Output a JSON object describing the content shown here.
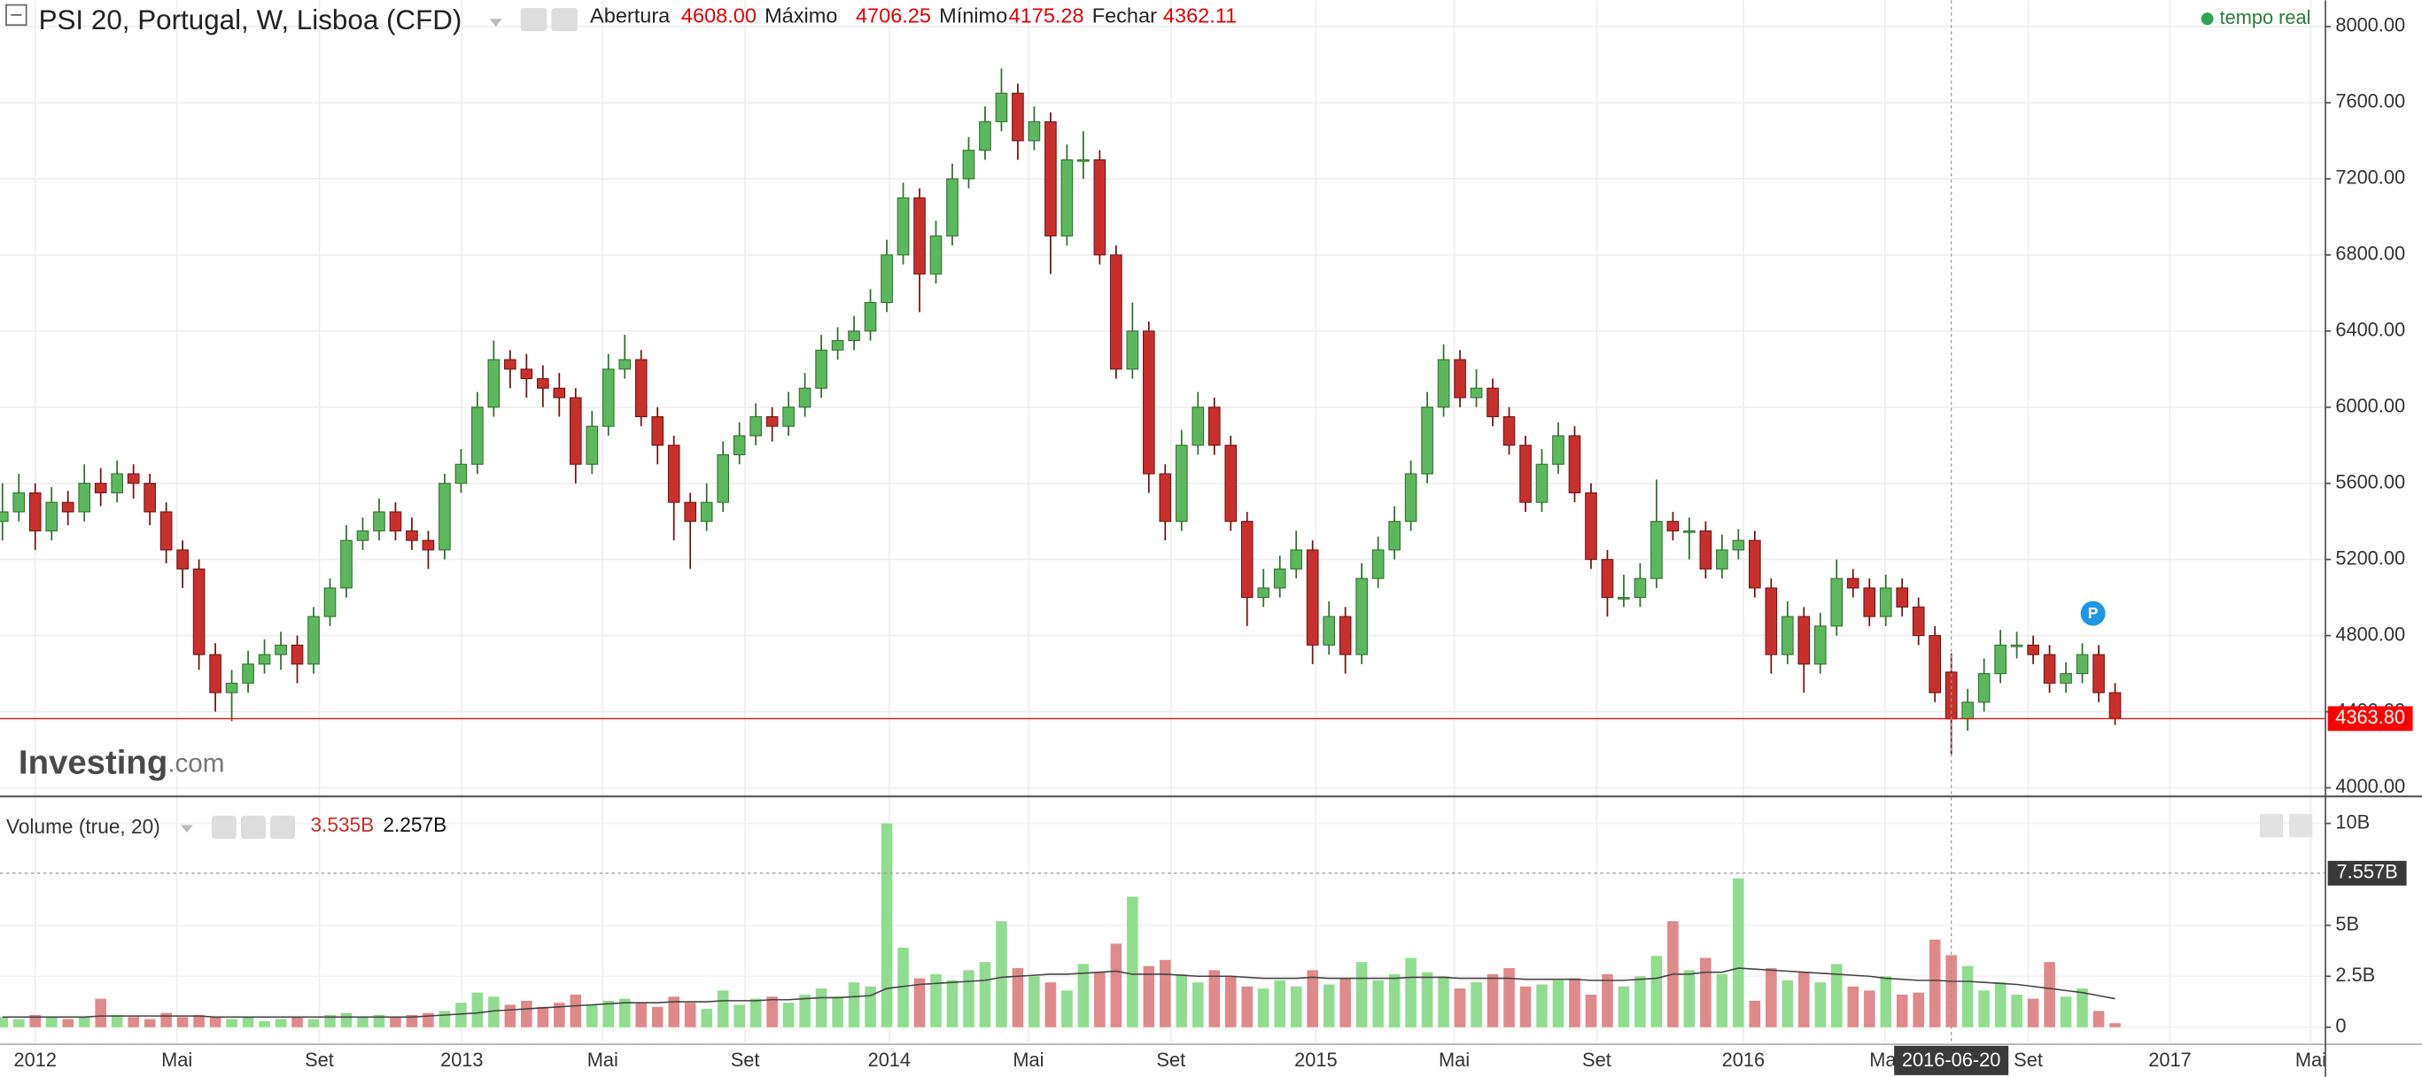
{
  "chart_data": {
    "type": "candlestick",
    "title": "PSI 20, Portugal, W, Lisboa (CFD)",
    "header_fields": [
      {
        "name": "Abertura",
        "value": 4608,
        "label": "4608.00"
      },
      {
        "name": "Máximo",
        "value": 4706.25,
        "label": "4706.25"
      },
      {
        "name": "Mínimo",
        "value": 4175.28,
        "label": "4175.28"
      },
      {
        "name": "Fechar",
        "value": 4362.11,
        "label": "4362.11"
      }
    ],
    "status": "tempo real",
    "watermark": {
      "brand": "Investing",
      "suffix": ".com"
    },
    "event_marker": "P",
    "up_color": "#5cb85c",
    "down_color": "#c9302c",
    "x": [
      -4,
      -2,
      0,
      2,
      4,
      6,
      8,
      10,
      12,
      14,
      16,
      18,
      20,
      22,
      24,
      26,
      28,
      30,
      32,
      34,
      36,
      38,
      40,
      42,
      44,
      46,
      48,
      50,
      52,
      54,
      56,
      58,
      60,
      62,
      64,
      66,
      68,
      70,
      72,
      74,
      76,
      78,
      80,
      82,
      84,
      86,
      88,
      90,
      92,
      94,
      96,
      98,
      100,
      102,
      104,
      106,
      108,
      110,
      112,
      114,
      116,
      118,
      120,
      122,
      124,
      126,
      128,
      130,
      132,
      134,
      136,
      138,
      140,
      142,
      144,
      146,
      148,
      150,
      152,
      154,
      156,
      158,
      160,
      162,
      164,
      166,
      168,
      170,
      172,
      174,
      176,
      178,
      180,
      182,
      184,
      186,
      188,
      190,
      192,
      194,
      196,
      198,
      200,
      202,
      204,
      206,
      208,
      210,
      212,
      214,
      216,
      218,
      220,
      222,
      224,
      226,
      228,
      230,
      232,
      234,
      236,
      238,
      240,
      242,
      244,
      246,
      248,
      250,
      252,
      254
    ],
    "ohlc": [
      [
        5400,
        5600,
        5300,
        5450
      ],
      [
        5450,
        5650,
        5400,
        5550
      ],
      [
        5550,
        5600,
        5250,
        5350
      ],
      [
        5350,
        5580,
        5300,
        5500
      ],
      [
        5500,
        5560,
        5380,
        5450
      ],
      [
        5450,
        5700,
        5400,
        5600
      ],
      [
        5600,
        5680,
        5480,
        5550
      ],
      [
        5550,
        5720,
        5500,
        5650
      ],
      [
        5650,
        5700,
        5520,
        5600
      ],
      [
        5600,
        5650,
        5380,
        5450
      ],
      [
        5450,
        5500,
        5180,
        5250
      ],
      [
        5250,
        5300,
        5050,
        5150
      ],
      [
        5150,
        5200,
        4620,
        4700
      ],
      [
        4700,
        4760,
        4400,
        4500
      ],
      [
        4500,
        4620,
        4350,
        4550
      ],
      [
        4550,
        4720,
        4500,
        4650
      ],
      [
        4650,
        4780,
        4600,
        4700
      ],
      [
        4700,
        4820,
        4620,
        4750
      ],
      [
        4750,
        4800,
        4550,
        4650
      ],
      [
        4650,
        4950,
        4600,
        4900
      ],
      [
        4900,
        5100,
        4850,
        5050
      ],
      [
        5050,
        5380,
        5000,
        5300
      ],
      [
        5300,
        5420,
        5250,
        5350
      ],
      [
        5350,
        5520,
        5300,
        5450
      ],
      [
        5450,
        5500,
        5300,
        5350
      ],
      [
        5350,
        5420,
        5250,
        5300
      ],
      [
        5300,
        5350,
        5150,
        5250
      ],
      [
        5250,
        5650,
        5200,
        5600
      ],
      [
        5600,
        5780,
        5550,
        5700
      ],
      [
        5700,
        6080,
        5650,
        6000
      ],
      [
        6000,
        6350,
        5950,
        6250
      ],
      [
        6250,
        6300,
        6100,
        6200
      ],
      [
        6200,
        6280,
        6050,
        6150
      ],
      [
        6150,
        6220,
        6000,
        6100
      ],
      [
        6100,
        6180,
        5950,
        6050
      ],
      [
        6050,
        6100,
        5600,
        5700
      ],
      [
        5700,
        5980,
        5650,
        5900
      ],
      [
        5900,
        6280,
        5850,
        6200
      ],
      [
        6200,
        6380,
        6150,
        6250
      ],
      [
        6250,
        6300,
        5900,
        5950
      ],
      [
        5950,
        6000,
        5700,
        5800
      ],
      [
        5800,
        5850,
        5300,
        5500
      ],
      [
        5500,
        5550,
        5150,
        5400
      ],
      [
        5400,
        5600,
        5350,
        5500
      ],
      [
        5500,
        5820,
        5450,
        5750
      ],
      [
        5750,
        5920,
        5700,
        5850
      ],
      [
        5850,
        6020,
        5800,
        5950
      ],
      [
        5950,
        6000,
        5820,
        5900
      ],
      [
        5900,
        6080,
        5850,
        6000
      ],
      [
        6000,
        6180,
        5950,
        6100
      ],
      [
        6100,
        6380,
        6050,
        6300
      ],
      [
        6300,
        6420,
        6250,
        6350
      ],
      [
        6350,
        6480,
        6300,
        6400
      ],
      [
        6400,
        6620,
        6350,
        6550
      ],
      [
        6550,
        6880,
        6500,
        6800
      ],
      [
        6800,
        7180,
        6750,
        7100
      ],
      [
        7100,
        7150,
        6500,
        6700
      ],
      [
        6700,
        6980,
        6650,
        6900
      ],
      [
        6900,
        7280,
        6850,
        7200
      ],
      [
        7200,
        7420,
        7150,
        7350
      ],
      [
        7350,
        7580,
        7300,
        7500
      ],
      [
        7500,
        7780,
        7450,
        7650
      ],
      [
        7650,
        7700,
        7300,
        7400
      ],
      [
        7400,
        7580,
        7350,
        7500
      ],
      [
        7500,
        7550,
        6700,
        6900
      ],
      [
        6900,
        7380,
        6850,
        7300
      ],
      [
        7300,
        7450,
        7200,
        7300
      ],
      [
        7300,
        7350,
        6750,
        6800
      ],
      [
        6800,
        6850,
        6150,
        6200
      ],
      [
        6200,
        6550,
        6150,
        6400
      ],
      [
        6400,
        6450,
        5550,
        5650
      ],
      [
        5650,
        5700,
        5300,
        5400
      ],
      [
        5400,
        5880,
        5350,
        5800
      ],
      [
        5800,
        6080,
        5750,
        6000
      ],
      [
        6000,
        6050,
        5750,
        5800
      ],
      [
        5800,
        5850,
        5350,
        5400
      ],
      [
        5400,
        5450,
        4850,
        5000
      ],
      [
        5000,
        5150,
        4950,
        5050
      ],
      [
        5050,
        5220,
        5000,
        5150
      ],
      [
        5150,
        5350,
        5100,
        5250
      ],
      [
        5250,
        5300,
        4650,
        4750
      ],
      [
        4750,
        4980,
        4700,
        4900
      ],
      [
        4900,
        4950,
        4600,
        4700
      ],
      [
        4700,
        5180,
        4650,
        5100
      ],
      [
        5100,
        5320,
        5050,
        5250
      ],
      [
        5250,
        5480,
        5200,
        5400
      ],
      [
        5400,
        5720,
        5350,
        5650
      ],
      [
        5650,
        6080,
        5600,
        6000
      ],
      [
        6000,
        6330,
        5950,
        6250
      ],
      [
        6250,
        6300,
        6000,
        6050
      ],
      [
        6050,
        6200,
        6000,
        6100
      ],
      [
        6100,
        6150,
        5900,
        5950
      ],
      [
        5950,
        6000,
        5750,
        5800
      ],
      [
        5800,
        5850,
        5450,
        5500
      ],
      [
        5500,
        5780,
        5450,
        5700
      ],
      [
        5700,
        5920,
        5650,
        5850
      ],
      [
        5850,
        5900,
        5500,
        5550
      ],
      [
        5550,
        5600,
        5150,
        5200
      ],
      [
        5200,
        5250,
        4900,
        5000
      ],
      [
        5000,
        5120,
        4950,
        5000
      ],
      [
        5000,
        5180,
        4950,
        5100
      ],
      [
        5100,
        5620,
        5050,
        5400
      ],
      [
        5400,
        5450,
        5300,
        5350
      ],
      [
        5350,
        5420,
        5200,
        5350
      ],
      [
        5350,
        5400,
        5100,
        5150
      ],
      [
        5150,
        5330,
        5100,
        5250
      ],
      [
        5250,
        5360,
        5200,
        5300
      ],
      [
        5300,
        5350,
        5000,
        5050
      ],
      [
        5050,
        5100,
        4600,
        4700
      ],
      [
        4700,
        4980,
        4650,
        4900
      ],
      [
        4900,
        4950,
        4500,
        4650
      ],
      [
        4650,
        4920,
        4600,
        4850
      ],
      [
        4850,
        5200,
        4800,
        5100
      ],
      [
        5100,
        5150,
        5000,
        5050
      ],
      [
        5050,
        5100,
        4850,
        4900
      ],
      [
        4900,
        5120,
        4850,
        5050
      ],
      [
        5050,
        5100,
        4900,
        4950
      ],
      [
        4950,
        5000,
        4750,
        4800
      ],
      [
        4800,
        4850,
        4450,
        4500
      ],
      [
        4608,
        4706.25,
        4175.28,
        4362.11
      ],
      [
        4362.11,
        4520,
        4300,
        4450
      ],
      [
        4450,
        4680,
        4400,
        4600
      ],
      [
        4600,
        4830,
        4550,
        4750
      ],
      [
        4750,
        4820,
        4680,
        4750
      ],
      [
        4750,
        4800,
        4650,
        4700
      ],
      [
        4700,
        4750,
        4500,
        4550
      ],
      [
        4550,
        4660,
        4500,
        4600
      ],
      [
        4600,
        4760,
        4550,
        4700
      ],
      [
        4700,
        4750,
        4450,
        4500
      ],
      [
        4500,
        4550,
        4330,
        4363.8
      ]
    ],
    "xlim": [
      -4.3,
      279.6
    ],
    "xticks": [
      {
        "value": 0,
        "label": "2012"
      },
      {
        "value": 17.3,
        "label": "Mai"
      },
      {
        "value": 34.7,
        "label": "Set"
      },
      {
        "value": 52.1,
        "label": "2013"
      },
      {
        "value": 69.3,
        "label": "Mai"
      },
      {
        "value": 86.7,
        "label": "Set"
      },
      {
        "value": 104.3,
        "label": "2014"
      },
      {
        "value": 121.3,
        "label": "Mai"
      },
      {
        "value": 138.7,
        "label": "Set"
      },
      {
        "value": 156.4,
        "label": "2015"
      },
      {
        "value": 173.3,
        "label": "Mai"
      },
      {
        "value": 190.7,
        "label": "Set"
      },
      {
        "value": 208.6,
        "label": "2016"
      },
      {
        "value": 225.9,
        "label": "Mai"
      },
      {
        "value": 243.4,
        "label": "Set"
      },
      {
        "value": 260.7,
        "label": "2017"
      },
      {
        "value": 277.9,
        "label": "Mai"
      }
    ],
    "ylim": [
      3959,
      8138
    ],
    "yticks": [
      {
        "value": 4000,
        "label": "4000.00"
      },
      {
        "value": 4400,
        "label": "4400.00"
      },
      {
        "value": 4800,
        "label": "4800.00"
      },
      {
        "value": 5200,
        "label": "5200.00"
      },
      {
        "value": 5600,
        "label": "5600.00"
      },
      {
        "value": 6000,
        "label": "6000.00"
      },
      {
        "value": 6400,
        "label": "6400.00"
      },
      {
        "value": 6800,
        "label": "6800.00"
      },
      {
        "value": 7200,
        "label": "7200.00"
      },
      {
        "value": 7600,
        "label": "7600.00"
      },
      {
        "value": 8000,
        "label": "8000.00"
      }
    ],
    "grid": true,
    "last_price": {
      "value": 4363.8,
      "label": "4363.80",
      "color": "#ff0000"
    },
    "volume": {
      "title": "Volume (true, 20)",
      "legend": [
        {
          "value": 3.535,
          "label": "3.535B",
          "color": "#c9302c"
        },
        {
          "value": 2.257,
          "label": "2.257B",
          "color": "#111111"
        }
      ],
      "up_color": "#90dd90",
      "down_color": "#e0898b",
      "ma_color": "#444444",
      "values": [
        0.5,
        0.4,
        0.6,
        0.5,
        0.4,
        0.5,
        1.4,
        0.6,
        0.5,
        0.4,
        0.7,
        0.5,
        0.6,
        0.5,
        0.4,
        0.5,
        0.3,
        0.4,
        0.5,
        0.4,
        0.6,
        0.7,
        0.5,
        0.6,
        0.5,
        0.6,
        0.7,
        0.8,
        1.2,
        1.7,
        1.5,
        1.1,
        1.3,
        1.0,
        1.2,
        1.6,
        1.1,
        1.3,
        1.4,
        1.2,
        1.0,
        1.5,
        1.2,
        0.9,
        1.8,
        1.1,
        1.4,
        1.5,
        1.2,
        1.6,
        1.9,
        1.5,
        2.2,
        2.0,
        10.0,
        3.9,
        2.4,
        2.6,
        2.3,
        2.8,
        3.2,
        5.2,
        2.9,
        2.5,
        2.2,
        1.8,
        3.1,
        2.7,
        4.1,
        6.4,
        3.0,
        3.3,
        2.6,
        2.2,
        2.8,
        2.5,
        2.0,
        1.9,
        2.3,
        2.0,
        2.8,
        2.1,
        2.4,
        3.2,
        2.3,
        2.6,
        3.4,
        2.7,
        2.5,
        1.9,
        2.2,
        2.6,
        2.9,
        2.0,
        2.1,
        2.3,
        2.4,
        1.6,
        2.6,
        2.0,
        2.5,
        3.5,
        5.2,
        2.8,
        3.4,
        2.6,
        7.3,
        1.3,
        2.9,
        2.3,
        2.7,
        2.2,
        3.1,
        2.0,
        1.8,
        2.5,
        1.6,
        1.7,
        4.3,
        3.535,
        3.0,
        1.8,
        2.2,
        1.6,
        1.4,
        3.2,
        1.5,
        1.9,
        0.8,
        0.2
      ],
      "ma": [
        0.5,
        0.5,
        0.5,
        0.5,
        0.5,
        0.5,
        0.55,
        0.55,
        0.55,
        0.55,
        0.55,
        0.55,
        0.55,
        0.5,
        0.5,
        0.5,
        0.5,
        0.5,
        0.5,
        0.5,
        0.5,
        0.5,
        0.5,
        0.5,
        0.5,
        0.5,
        0.55,
        0.6,
        0.65,
        0.7,
        0.8,
        0.85,
        0.9,
        0.95,
        1.0,
        1.05,
        1.1,
        1.15,
        1.2,
        1.2,
        1.2,
        1.25,
        1.25,
        1.25,
        1.3,
        1.3,
        1.3,
        1.35,
        1.35,
        1.4,
        1.45,
        1.45,
        1.5,
        1.55,
        1.9,
        2.0,
        2.1,
        2.15,
        2.2,
        2.25,
        2.3,
        2.45,
        2.5,
        2.55,
        2.6,
        2.6,
        2.65,
        2.7,
        2.75,
        2.6,
        2.6,
        2.6,
        2.55,
        2.5,
        2.5,
        2.5,
        2.45,
        2.4,
        2.4,
        2.4,
        2.45,
        2.4,
        2.4,
        2.4,
        2.4,
        2.4,
        2.45,
        2.45,
        2.45,
        2.4,
        2.4,
        2.4,
        2.4,
        2.35,
        2.35,
        2.35,
        2.35,
        2.3,
        2.3,
        2.3,
        2.35,
        2.4,
        2.6,
        2.6,
        2.7,
        2.7,
        2.9,
        2.85,
        2.8,
        2.75,
        2.7,
        2.65,
        2.6,
        2.55,
        2.5,
        2.4,
        2.35,
        2.3,
        2.3,
        2.257,
        2.25,
        2.2,
        2.15,
        2.1,
        2.0,
        1.9,
        1.8,
        1.7,
        1.55,
        1.4
      ],
      "ylim": [
        -0.76,
        11.21
      ],
      "yticks": [
        0,
        {
          "value": 2.5,
          "label": "2.5B"
        },
        {
          "value": 5,
          "label": "5B"
        },
        {
          "value": 10,
          "label": "10B"
        }
      ]
    },
    "crosshair": {
      "x": 234,
      "label": "2016-06-20",
      "volume": {
        "value": 7.557,
        "label": "7.557B"
      }
    }
  }
}
